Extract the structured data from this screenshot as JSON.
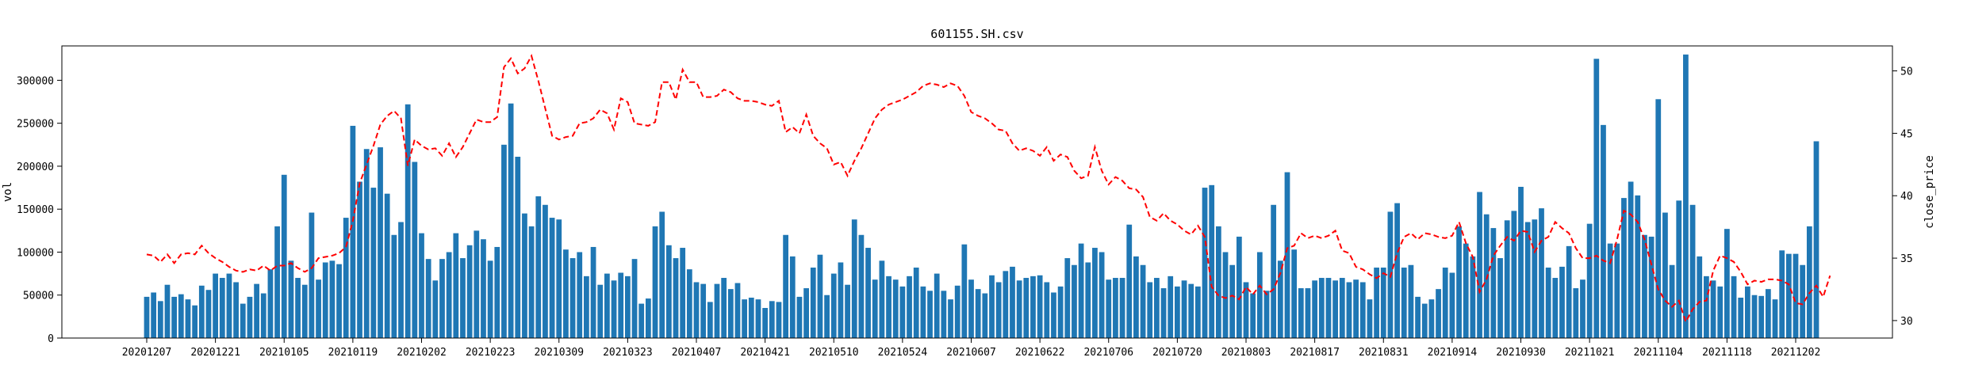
{
  "chart_data": {
    "type": "bar",
    "title": "601155.SH.csv",
    "xlabel": "",
    "ylabel": "vol",
    "y2label": "close_price",
    "ylim": [
      0,
      340000
    ],
    "y2lim": [
      28.6,
      52.0
    ],
    "yticks": [
      0,
      50000,
      100000,
      150000,
      200000,
      250000,
      300000
    ],
    "y2ticks": [
      30,
      35,
      40,
      45,
      50
    ],
    "grid": false,
    "xticks": [
      {
        "index": 0,
        "label": "20201207"
      },
      {
        "index": 10,
        "label": "20201221"
      },
      {
        "index": 20,
        "label": "20210105"
      },
      {
        "index": 30,
        "label": "20210119"
      },
      {
        "index": 40,
        "label": "20210202"
      },
      {
        "index": 50,
        "label": "20210223"
      },
      {
        "index": 60,
        "label": "20210309"
      },
      {
        "index": 70,
        "label": "20210323"
      },
      {
        "index": 80,
        "label": "20210407"
      },
      {
        "index": 90,
        "label": "20210421"
      },
      {
        "index": 100,
        "label": "20210510"
      },
      {
        "index": 110,
        "label": "20210524"
      },
      {
        "index": 120,
        "label": "20210607"
      },
      {
        "index": 130,
        "label": "20210622"
      },
      {
        "index": 140,
        "label": "20210706"
      },
      {
        "index": 150,
        "label": "20210720"
      },
      {
        "index": 160,
        "label": "20210803"
      },
      {
        "index": 170,
        "label": "20210817"
      },
      {
        "index": 180,
        "label": "20210831"
      },
      {
        "index": 190,
        "label": "20210914"
      },
      {
        "index": 200,
        "label": "20210930"
      },
      {
        "index": 210,
        "label": "20211021"
      },
      {
        "index": 220,
        "label": "20211104"
      },
      {
        "index": 230,
        "label": "20211118"
      },
      {
        "index": 240,
        "label": "20211202"
      }
    ],
    "series": [
      {
        "type": "bar",
        "color": "#1f77b4",
        "values": [
          48000,
          53000,
          43000,
          62000,
          48000,
          51000,
          45000,
          38000,
          61000,
          56000,
          75000,
          70000,
          75000,
          65000,
          40000,
          48000,
          63000,
          52000,
          80000,
          130000,
          190000,
          90000,
          70000,
          62000,
          146000,
          68000,
          88000,
          90000,
          86000,
          140000,
          247000,
          182000,
          220000,
          175000,
          222000,
          168000,
          120000,
          135000,
          272000,
          205000,
          122000,
          92000,
          67000,
          92000,
          100000,
          122000,
          93000,
          108000,
          125000,
          115000,
          90000,
          106000,
          225000,
          273000,
          211000,
          145000,
          130000,
          165000,
          155000,
          140000,
          138000,
          103000,
          93000,
          100000,
          72000,
          106000,
          62000,
          75000,
          67000,
          76000,
          72000,
          92000,
          40000,
          46000,
          130000,
          147000,
          108000,
          93000,
          105000,
          80000,
          65000,
          63000,
          42000,
          63000,
          70000,
          57000,
          64000,
          45000,
          47000,
          45000,
          35000,
          43000,
          42000,
          120000,
          95000,
          48000,
          58000,
          82000,
          97000,
          50000,
          75000,
          88000,
          62000,
          138000,
          120000,
          105000,
          68000,
          90000,
          72000,
          68000,
          60000,
          72000,
          82000,
          60000,
          55000,
          75000,
          55000,
          45000,
          61000,
          109000,
          68000,
          57000,
          52000,
          73000,
          65000,
          78000,
          83000,
          67000,
          70000,
          72000,
          73000,
          65000,
          53000,
          60000,
          93000,
          85000,
          110000,
          88000,
          105000,
          100000,
          68000,
          70000,
          70000,
          132000,
          95000,
          85000,
          65000,
          70000,
          58000,
          72000,
          60000,
          67000,
          63000,
          60000,
          175000,
          178000,
          130000,
          100000,
          85000,
          118000,
          65000,
          52000,
          100000,
          55000,
          155000,
          90000,
          193000,
          103000,
          58000,
          58000,
          67000,
          70000,
          70000,
          67000,
          70000,
          65000,
          68000,
          65000,
          45000,
          82000,
          82000,
          147000,
          157000,
          82000,
          85000,
          48000,
          40000,
          45000,
          57000,
          82000,
          76000,
          130000,
          110000,
          95000,
          170000,
          144000,
          128000,
          93000,
          137000,
          148000,
          176000,
          135000,
          138000,
          151000,
          82000,
          70000,
          83000,
          107000,
          58000,
          68000,
          133000,
          325000,
          248000,
          110000,
          110000,
          163000,
          182000,
          166000,
          120000,
          118000,
          278000,
          146000,
          85000,
          160000,
          330000,
          155000,
          95000,
          72000,
          67000,
          60000,
          127000,
          72000,
          47000,
          60000,
          50000,
          49000,
          57000,
          45000,
          102000,
          98000,
          98000,
          85000,
          130000,
          229000
        ]
      },
      {
        "type": "line",
        "name": "close_price",
        "color": "#ff0000",
        "style": "dashed",
        "values": [
          35.3,
          35.2,
          34.7,
          35.3,
          34.6,
          35.3,
          35.4,
          35.3,
          36.0,
          35.4,
          35.0,
          34.7,
          34.3,
          34.0,
          33.9,
          34.1,
          34.0,
          34.4,
          34.0,
          34.4,
          34.4,
          34.6,
          34.2,
          33.9,
          34.2,
          35.0,
          35.1,
          35.2,
          35.4,
          35.9,
          38.0,
          41.0,
          42.5,
          44.0,
          45.7,
          46.4,
          46.8,
          46.2,
          42.4,
          44.5,
          44.0,
          43.7,
          43.8,
          43.2,
          44.2,
          43.1,
          43.9,
          45.0,
          46.1,
          45.9,
          45.9,
          46.3,
          50.3,
          51.0,
          49.8,
          50.2,
          51.2,
          49.2,
          47.0,
          44.8,
          44.5,
          44.7,
          44.8,
          45.8,
          45.9,
          46.2,
          46.9,
          46.6,
          45.3,
          47.8,
          47.5,
          45.8,
          45.7,
          45.6,
          45.9,
          49.1,
          49.1,
          47.7,
          50.1,
          49.1,
          49.1,
          47.9,
          47.9,
          48.0,
          48.5,
          48.3,
          47.8,
          47.6,
          47.6,
          47.5,
          47.3,
          47.2,
          47.6,
          45.1,
          45.5,
          45.0,
          46.5,
          44.8,
          44.2,
          43.8,
          42.5,
          42.7,
          41.6,
          42.8,
          43.8,
          45.0,
          46.2,
          46.9,
          47.3,
          47.5,
          47.7,
          48.0,
          48.3,
          48.8,
          49.0,
          48.9,
          48.7,
          49.0,
          48.8,
          48.0,
          46.7,
          46.4,
          46.2,
          45.8,
          45.3,
          45.2,
          44.2,
          43.6,
          43.8,
          43.6,
          43.2,
          43.9,
          42.8,
          43.3,
          43.1,
          42.0,
          41.4,
          41.6,
          43.9,
          42.0,
          40.9,
          41.5,
          41.2,
          40.6,
          40.5,
          39.9,
          38.3,
          38.0,
          38.6,
          38.0,
          37.7,
          37.2,
          36.9,
          37.6,
          36.7,
          32.7,
          32.0,
          31.8,
          32.0,
          31.7,
          32.7,
          32.1,
          32.8,
          32.1,
          32.5,
          33.8,
          35.8,
          36.0,
          37.0,
          36.6,
          36.8,
          36.6,
          36.8,
          37.2,
          35.6,
          35.4,
          34.3,
          34.1,
          33.7,
          33.4,
          33.8,
          33.5,
          35.4,
          36.7,
          37.0,
          36.5,
          37.0,
          36.9,
          36.7,
          36.6,
          36.8,
          37.9,
          36.2,
          35.1,
          32.3,
          33.3,
          35.2,
          36.0,
          36.7,
          36.4,
          37.2,
          37.1,
          35.5,
          36.4,
          36.7,
          37.9,
          37.4,
          37.0,
          35.8,
          35.0,
          35.0,
          35.2,
          34.8,
          34.6,
          36.5,
          38.8,
          38.5,
          37.9,
          36.5,
          34.5,
          32.5,
          31.6,
          31.1,
          31.6,
          29.9,
          30.9,
          31.5,
          31.6,
          34.0,
          35.2,
          35.0,
          34.7,
          33.9,
          32.9,
          33.2,
          33.1,
          33.3,
          33.3,
          33.2,
          32.9,
          31.4,
          31.3,
          32.2,
          32.8,
          31.9,
          33.6
        ]
      }
    ]
  }
}
